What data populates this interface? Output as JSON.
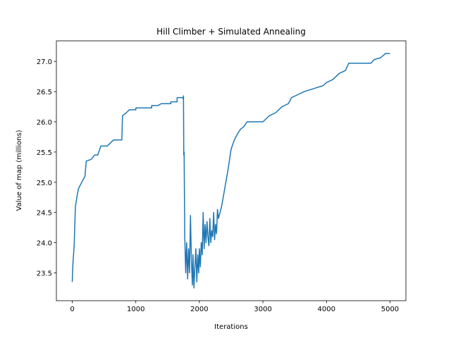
{
  "chart_data": {
    "type": "line",
    "title": "Hill Climber + Simulated Annealing",
    "x_label": "Iterations",
    "y_label": "Value of map (millions)",
    "color": "#1f77b4",
    "x": [
      0,
      10,
      30,
      40,
      50,
      80,
      100,
      150,
      200,
      220,
      300,
      350,
      400,
      450,
      550,
      600,
      650,
      780,
      790,
      850,
      900,
      1000,
      1000,
      1250,
      1250,
      1350,
      1400,
      1550,
      1550,
      1650,
      1650,
      1740,
      1745,
      1750,
      1755,
      1760,
      1770,
      1785,
      1800,
      1815,
      1830,
      1845,
      1860,
      1875,
      1890,
      1900,
      1915,
      1930,
      1945,
      1960,
      1975,
      1990,
      2000,
      2015,
      2030,
      2045,
      2060,
      2075,
      2090,
      2105,
      2120,
      2135,
      2150,
      2165,
      2180,
      2195,
      2210,
      2225,
      2240,
      2255,
      2270,
      2285,
      2300,
      2350,
      2400,
      2450,
      2500,
      2550,
      2600,
      2650,
      2700,
      2750,
      3000,
      3100,
      3200,
      3300,
      3400,
      3450,
      3550,
      3650,
      3800,
      3950,
      4000,
      4100,
      4200,
      4300,
      4350,
      4700,
      4750,
      4850,
      4930,
      5000
    ],
    "values": [
      23.35,
      23.65,
      23.95,
      24.3,
      24.6,
      24.8,
      24.9,
      25.0,
      25.1,
      25.35,
      25.38,
      25.45,
      25.45,
      25.6,
      25.6,
      25.65,
      25.7,
      25.7,
      26.1,
      26.15,
      26.2,
      26.2,
      26.23,
      26.23,
      26.27,
      26.27,
      26.3,
      26.3,
      26.33,
      26.33,
      26.4,
      26.4,
      26.38,
      26.43,
      25.45,
      25.5,
      24.1,
      23.5,
      24.0,
      23.4,
      23.9,
      23.5,
      24.45,
      23.7,
      23.3,
      23.8,
      23.25,
      23.6,
      23.9,
      23.35,
      23.8,
      23.5,
      23.9,
      23.6,
      24.0,
      23.8,
      24.5,
      23.9,
      24.3,
      24.0,
      24.35,
      24.1,
      23.95,
      24.4,
      24.0,
      24.2,
      24.1,
      24.5,
      24.05,
      24.3,
      24.15,
      24.55,
      24.4,
      24.6,
      24.9,
      25.2,
      25.55,
      25.7,
      25.8,
      25.88,
      25.92,
      26.0,
      26.0,
      26.1,
      26.15,
      26.25,
      26.3,
      26.4,
      26.45,
      26.5,
      26.55,
      26.6,
      26.65,
      26.7,
      26.8,
      26.85,
      26.97,
      26.97,
      27.03,
      27.06,
      27.13,
      27.13
    ],
    "xlim": [
      -250,
      5250
    ],
    "ylim": [
      23.04,
      27.34
    ],
    "xticks": [
      0,
      1000,
      2000,
      3000,
      4000,
      5000
    ],
    "yticks": [
      23.5,
      {
        "value": 24,
        "label": "24.0"
      },
      24.5,
      {
        "value": 25,
        "label": "25.0"
      },
      25.5,
      {
        "value": 26,
        "label": "26.0"
      },
      26.5,
      {
        "value": 27,
        "label": "27.0"
      }
    ]
  }
}
